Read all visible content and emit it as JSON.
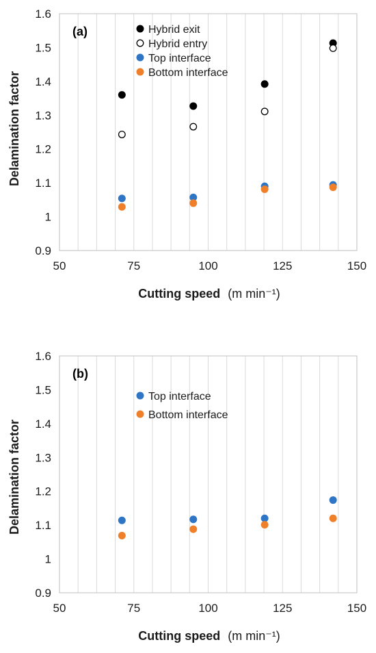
{
  "chart_data": [
    {
      "type": "scatter",
      "panel_label": "(a)",
      "xlabel": "Cutting speed",
      "xlabel_unit": "(m min⁻¹)",
      "ylabel": "Delamination factor",
      "xlim": [
        50,
        150
      ],
      "ylim": [
        0.9,
        1.6
      ],
      "x_ticks": [
        "50",
        "75",
        "100",
        "125",
        "150"
      ],
      "y_ticks": [
        "0.9",
        "1",
        "1.1",
        "1.2",
        "1.3",
        "1.4",
        "1.5",
        "1.6"
      ],
      "grid": "vertical",
      "legend_position": "top-center",
      "series": [
        {
          "name": "Hybrid exit",
          "color": "#000000",
          "filled": true,
          "x": [
            71,
            95,
            119,
            142
          ],
          "y": [
            1.36,
            1.327,
            1.392,
            1.513
          ]
        },
        {
          "name": "Hybrid entry",
          "color": "#000000",
          "filled": false,
          "x": [
            71,
            95,
            119,
            142
          ],
          "y": [
            1.243,
            1.266,
            1.311,
            1.498
          ]
        },
        {
          "name": "Top interface",
          "color": "#2E75C5",
          "filled": true,
          "x": [
            71,
            95,
            119,
            142
          ],
          "y": [
            1.054,
            1.057,
            1.09,
            1.094
          ]
        },
        {
          "name": "Bottom interface",
          "color": "#F07F2A",
          "filled": true,
          "x": [
            71,
            95,
            119,
            142
          ],
          "y": [
            1.029,
            1.04,
            1.081,
            1.087
          ]
        }
      ]
    },
    {
      "type": "scatter",
      "panel_label": "(b)",
      "xlabel": "Cutting speed",
      "xlabel_unit": "(m min⁻¹)",
      "ylabel": "Delamination factor",
      "xlim": [
        50,
        150
      ],
      "ylim": [
        0.9,
        1.6
      ],
      "x_ticks": [
        "50",
        "75",
        "100",
        "125",
        "150"
      ],
      "y_ticks": [
        "0.9",
        "1",
        "1.1",
        "1.2",
        "1.3",
        "1.4",
        "1.5",
        "1.6"
      ],
      "grid": "vertical",
      "legend_position": "top-center",
      "series": [
        {
          "name": "Top interface",
          "color": "#2E75C5",
          "filled": true,
          "x": [
            71,
            95,
            119,
            142
          ],
          "y": [
            1.114,
            1.117,
            1.12,
            1.174
          ]
        },
        {
          "name": "Bottom interface",
          "color": "#F07F2A",
          "filled": true,
          "x": [
            71,
            95,
            119,
            142
          ],
          "y": [
            1.069,
            1.088,
            1.101,
            1.12
          ]
        }
      ]
    }
  ]
}
